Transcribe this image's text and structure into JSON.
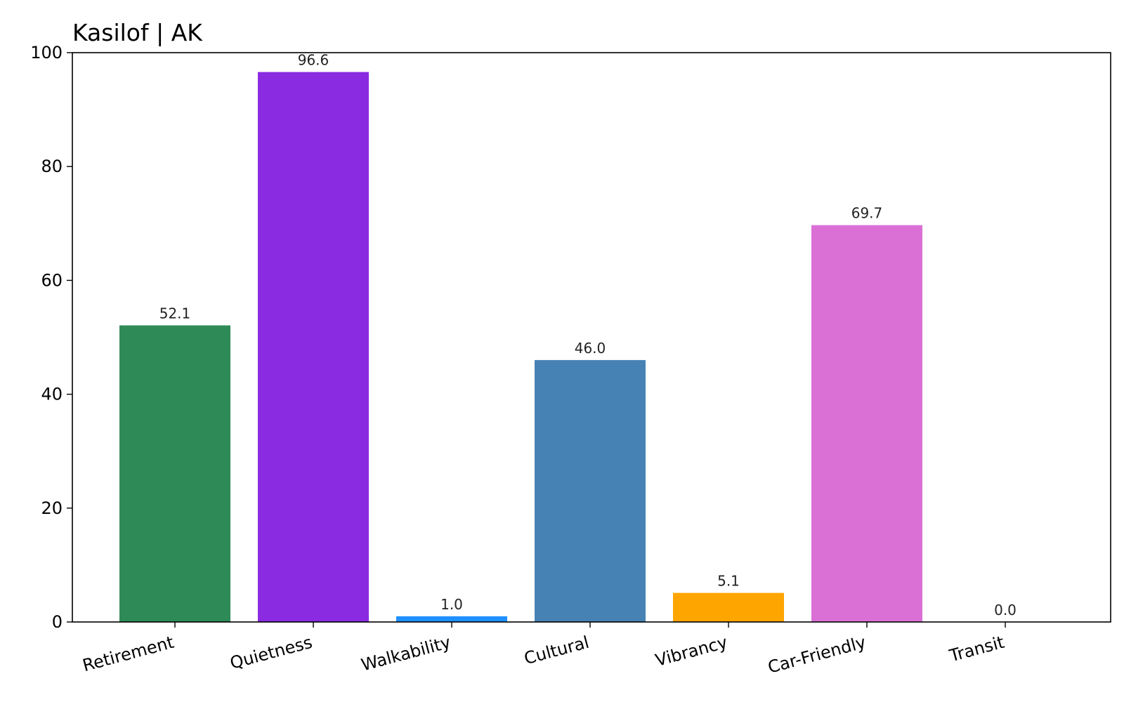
{
  "chart_data": {
    "type": "bar",
    "title": "Kasilof | AK",
    "xlabel": "",
    "ylabel": "",
    "categories": [
      "Retirement",
      "Quietness",
      "Walkability",
      "Cultural",
      "Vibrancy",
      "Car-Friendly",
      "Transit"
    ],
    "values": [
      52.1,
      96.6,
      1.0,
      46.0,
      5.1,
      69.7,
      0.0
    ],
    "value_labels": [
      "52.1",
      "96.6",
      "1.0",
      "46.0",
      "5.1",
      "69.7",
      "0.0"
    ],
    "colors": [
      "#2e8b57",
      "#8a2be2",
      "#1e90ff",
      "#4682b4",
      "#ffa500",
      "#da70d6",
      "#808080"
    ],
    "ylim": [
      0,
      100
    ],
    "yticks": [
      0,
      20,
      40,
      60,
      80,
      100
    ],
    "ytick_labels": [
      "0",
      "20",
      "40",
      "60",
      "80",
      "100"
    ],
    "grid": false,
    "legend": "none",
    "xtick_rotation": "slanted"
  }
}
